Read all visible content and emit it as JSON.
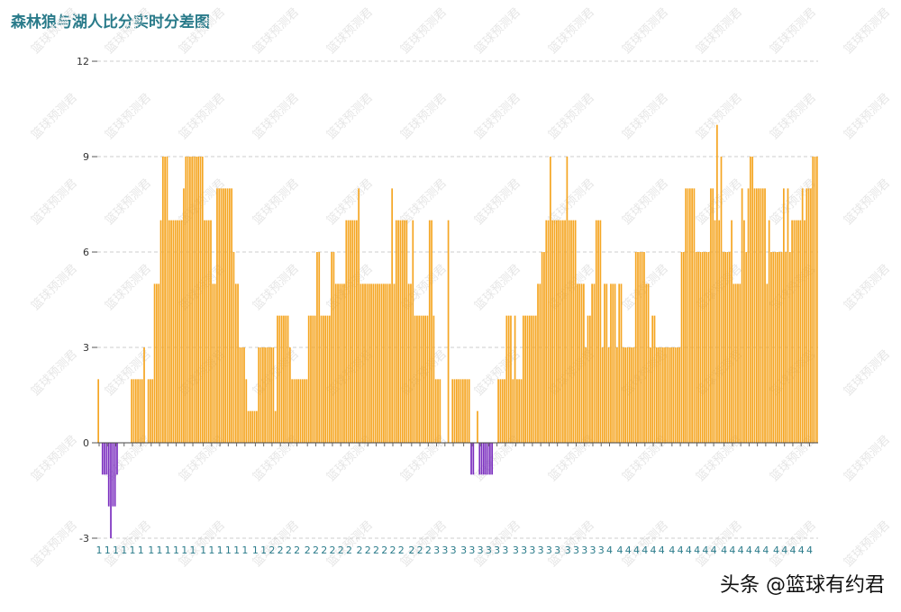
{
  "title": "森林狼与湖人比分实时分差图",
  "credit": "头条 @篮球有约君",
  "watermark": "篮球预测君",
  "colors": {
    "positive": "#f5a623",
    "negative": "#7b2fbf",
    "title": "#2a7b8a"
  },
  "chart_data": {
    "type": "bar",
    "title": "森林狼与湖人比分实时分差图",
    "ylim": [
      -3.4,
      13
    ],
    "yticks": [
      -3,
      0,
      3,
      6,
      9,
      12
    ],
    "grid": true,
    "quarters": [
      {
        "label": "1",
        "values": [
          2,
          0,
          -1,
          -1,
          -1,
          -2,
          -3,
          -2,
          -2,
          -1,
          0,
          0,
          0,
          0,
          0,
          0,
          2,
          2,
          2,
          2,
          2,
          2,
          3,
          0,
          2,
          2,
          2,
          5,
          5,
          5,
          7,
          9,
          9,
          9,
          7,
          7,
          7,
          7,
          7,
          7,
          7,
          8,
          9,
          9,
          9,
          9,
          9,
          9,
          9,
          9,
          9,
          7,
          7,
          7,
          7,
          5,
          5,
          8,
          8,
          8,
          8,
          8,
          8,
          8,
          8,
          6,
          5,
          5,
          3,
          3,
          3,
          2,
          1,
          1,
          1,
          1,
          1,
          3,
          3,
          3
        ]
      },
      {
        "label": "2",
        "values": [
          3,
          3,
          3,
          3,
          3,
          1,
          4,
          4,
          4,
          4,
          4,
          4,
          3,
          2,
          2,
          2,
          2,
          2,
          2,
          2,
          2,
          4,
          4,
          4,
          4,
          6,
          6,
          4,
          4,
          4,
          4,
          4,
          6,
          6,
          5,
          5,
          5,
          5,
          5,
          7,
          7,
          7,
          7,
          7,
          7,
          8,
          5,
          5,
          5,
          5,
          5,
          5,
          5,
          5,
          5,
          5,
          5,
          5,
          5,
          5,
          5,
          8,
          5,
          7,
          7,
          7,
          7,
          7,
          7,
          5,
          5,
          7,
          4,
          4,
          4,
          4,
          4,
          4,
          4,
          7,
          7,
          4
        ]
      },
      {
        "label": "3",
        "values": [
          2,
          2,
          2,
          0,
          0,
          0,
          7,
          0,
          2,
          2,
          2,
          2,
          2,
          2,
          2,
          2,
          2,
          -1,
          -1,
          0,
          1,
          -1,
          -1,
          -1,
          -1,
          -1,
          -1,
          -1,
          0,
          0,
          2,
          2,
          2,
          2,
          4,
          4,
          4,
          2,
          4,
          2,
          2,
          2,
          4,
          4,
          4,
          4,
          4,
          4,
          4,
          5,
          5,
          6,
          6,
          7,
          7,
          9,
          7,
          7,
          7,
          7,
          7,
          7,
          7,
          9,
          7,
          7,
          7,
          7,
          5,
          5,
          5,
          5,
          3,
          4,
          4,
          5,
          5,
          7,
          7,
          7,
          3,
          5
        ]
      },
      {
        "label": "4",
        "values": [
          5,
          3,
          5,
          5,
          5,
          3,
          5,
          5,
          3,
          3,
          3,
          3,
          3,
          3,
          6,
          6,
          6,
          6,
          6,
          5,
          5,
          3,
          4,
          4,
          3,
          3,
          3,
          3,
          3,
          3,
          3,
          3,
          3,
          3,
          3,
          3,
          6,
          6,
          8,
          8,
          8,
          8,
          8,
          6,
          6,
          6,
          6,
          6,
          6,
          6,
          8,
          8,
          7,
          10,
          7,
          9,
          6,
          6,
          6,
          6,
          7,
          5,
          5,
          5,
          5,
          8,
          7,
          6,
          8,
          9,
          9,
          8,
          8,
          8,
          8,
          8,
          8,
          5,
          7,
          6,
          6,
          6,
          6,
          6,
          6,
          8,
          6,
          8,
          6,
          7,
          7,
          7,
          7,
          7,
          8,
          7,
          8,
          8,
          8,
          9,
          9,
          9
        ]
      }
    ]
  }
}
